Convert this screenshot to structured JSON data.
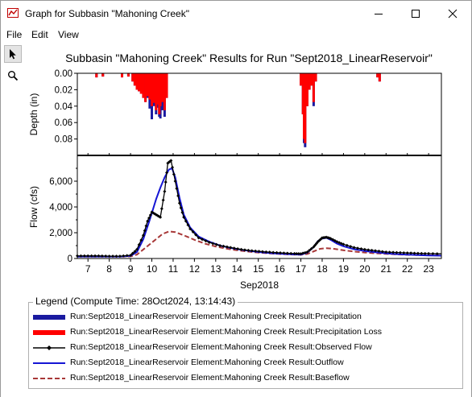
{
  "window": {
    "title": "Graph for Subbasin \"Mahoning Creek\"",
    "controls": {
      "minimize": "minimize-icon",
      "maximize": "maximize-icon",
      "close": "close-icon"
    }
  },
  "menu": [
    {
      "label": "File"
    },
    {
      "label": "Edit"
    },
    {
      "label": "View"
    }
  ],
  "tools": [
    {
      "icon": "pointer-arrow-icon",
      "selected": true
    },
    {
      "icon": "zoom-magnifier-icon",
      "selected": false
    }
  ],
  "chart_title": "Subbasin \"Mahoning Creek\" Results for Run \"Sept2018_LinearReservoir\"",
  "colors": {
    "precipitation": "#1a1aa0",
    "precipitation_loss": "#ff0000",
    "observed": "#000000",
    "outflow": "#1515d4",
    "baseflow": "#a83838"
  },
  "chart_data": [
    {
      "type": "bar",
      "name": "depth",
      "ylabel": "Depth (in)",
      "ylim": [
        0.1,
        0.0
      ],
      "yticks": [
        "0.00",
        "0.02",
        "0.04",
        "0.06",
        "0.08"
      ],
      "ytick_values": [
        0.0,
        0.02,
        0.04,
        0.06,
        0.08
      ],
      "inverted": true,
      "series": [
        {
          "name": "Run:Sept2018_LinearReservoir Element:Mahoning Creek Result:Precipitation"
        },
        {
          "name": "Run:Sept2018_LinearReservoir Element:Mahoning Creek Result:Precipitation Loss"
        }
      ],
      "x": [
        7.4,
        7.7,
        8.6,
        8.9,
        9.1,
        9.2,
        9.3,
        9.4,
        9.5,
        9.6,
        9.7,
        9.8,
        9.9,
        10.0,
        10.1,
        10.2,
        10.3,
        10.35,
        10.4,
        10.5,
        10.6,
        10.7,
        17.0,
        17.1,
        17.15,
        17.2,
        17.3,
        17.4,
        17.5,
        17.6,
        17.7,
        20.6,
        20.7
      ],
      "precipitation_loss": [
        0.005,
        0.004,
        0.005,
        0.004,
        0.01,
        0.015,
        0.02,
        0.022,
        0.025,
        0.03,
        0.035,
        0.028,
        0.032,
        0.04,
        0.036,
        0.045,
        0.038,
        0.05,
        0.04,
        0.035,
        0.045,
        0.03,
        0.015,
        0.05,
        0.08,
        0.085,
        0.04,
        0.02,
        0.015,
        0.035,
        0.01,
        0.005,
        0.01
      ],
      "precipitation": [
        0.005,
        0.004,
        0.005,
        0.004,
        0.01,
        0.015,
        0.02,
        0.022,
        0.025,
        0.03,
        0.035,
        0.03,
        0.043,
        0.056,
        0.04,
        0.05,
        0.042,
        0.053,
        0.055,
        0.045,
        0.053,
        0.03,
        0.015,
        0.05,
        0.085,
        0.09,
        0.04,
        0.02,
        0.015,
        0.04,
        0.01,
        0.005,
        0.01
      ]
    },
    {
      "type": "line",
      "name": "flow",
      "ylabel": "Flow (cfs)",
      "xlabel": "Sep2018",
      "xticks": [
        "7",
        "8",
        "9",
        "10",
        "11",
        "12",
        "13",
        "14",
        "15",
        "16",
        "17",
        "18",
        "19",
        "20",
        "21",
        "22",
        "23"
      ],
      "xlim": [
        6.5,
        23.6
      ],
      "ylim": [
        0,
        8000
      ],
      "yticks": [
        "0",
        "2,000",
        "4,000",
        "6,000"
      ],
      "ytick_values": [
        0,
        2000,
        4000,
        6000
      ],
      "series": [
        {
          "name": "Run:Sept2018_LinearReservoir Element:Mahoning Creek Result:Observed Flow",
          "x": [
            6.5,
            7.0,
            7.5,
            8.0,
            8.5,
            9.0,
            9.3,
            9.6,
            9.8,
            10.0,
            10.2,
            10.4,
            10.6,
            10.75,
            10.9,
            11.1,
            11.3,
            11.5,
            11.8,
            12.2,
            12.7,
            13.2,
            13.7,
            14.2,
            14.7,
            15.2,
            15.7,
            16.2,
            16.7,
            17.0,
            17.3,
            17.6,
            17.8,
            18.0,
            18.2,
            18.4,
            18.7,
            19.0,
            19.5,
            20.0,
            20.5,
            21.0,
            21.5,
            22.0,
            22.5,
            23.0,
            23.6
          ],
          "y": [
            200,
            200,
            200,
            180,
            180,
            250,
            700,
            1800,
            2900,
            3600,
            3400,
            3200,
            5200,
            7400,
            7600,
            6000,
            4300,
            3200,
            2300,
            1600,
            1250,
            1000,
            850,
            700,
            600,
            530,
            470,
            420,
            380,
            370,
            500,
            900,
            1300,
            1600,
            1650,
            1550,
            1300,
            1100,
            850,
            700,
            600,
            500,
            460,
            430,
            400,
            380,
            360
          ]
        },
        {
          "name": "Run:Sept2018_LinearReservoir Element:Mahoning Creek Result:Outflow",
          "x": [
            6.5,
            7.0,
            7.5,
            8.0,
            8.5,
            9.0,
            9.3,
            9.6,
            9.9,
            10.2,
            10.4,
            10.6,
            10.8,
            10.95,
            11.1,
            11.3,
            11.5,
            11.8,
            12.2,
            12.7,
            13.2,
            13.7,
            14.2,
            14.7,
            15.2,
            15.7,
            16.2,
            16.7,
            17.0,
            17.3,
            17.6,
            17.8,
            18.0,
            18.2,
            18.4,
            18.7,
            19.0,
            19.5,
            20.0,
            20.5,
            21.0,
            21.5,
            22.0,
            22.5,
            23.0,
            23.6
          ],
          "y": [
            150,
            150,
            150,
            150,
            150,
            200,
            500,
            1500,
            3000,
            4600,
            5500,
            6300,
            6900,
            7000,
            6300,
            4700,
            3400,
            2400,
            1700,
            1300,
            1000,
            820,
            680,
            560,
            470,
            400,
            350,
            310,
            300,
            450,
            900,
            1350,
            1550,
            1600,
            1450,
            1150,
            950,
            720,
            580,
            480,
            400,
            340,
            300,
            270,
            240,
            220
          ]
        },
        {
          "name": "Run:Sept2018_LinearReservoir Element:Mahoning Creek Result:Baseflow",
          "x": [
            6.5,
            7.0,
            7.5,
            8.0,
            8.5,
            9.0,
            9.3,
            9.6,
            9.9,
            10.2,
            10.5,
            10.8,
            11.1,
            11.5,
            12.0,
            12.5,
            13.0,
            13.5,
            14.0,
            14.5,
            15.0,
            15.5,
            16.0,
            16.5,
            17.0,
            17.3,
            17.6,
            17.9,
            18.2,
            18.5,
            19.0,
            19.5,
            20.0,
            20.5,
            21.0,
            21.5,
            22.0,
            22.5,
            23.0,
            23.6
          ],
          "y": [
            150,
            150,
            150,
            150,
            150,
            160,
            300,
            700,
            1100,
            1500,
            1900,
            2100,
            2050,
            1800,
            1450,
            1150,
            930,
            760,
            640,
            540,
            460,
            400,
            350,
            310,
            290,
            350,
            550,
            750,
            800,
            760,
            640,
            540,
            460,
            400,
            360,
            320,
            290,
            270,
            250,
            240
          ]
        }
      ]
    }
  ],
  "legend": {
    "title": "Legend (Compute Time: 28Oct2024, 13:14:43)",
    "items": [
      {
        "label": "Run:Sept2018_LinearReservoir Element:Mahoning Creek Result:Precipitation",
        "style": "thick",
        "color_key": "precipitation"
      },
      {
        "label": "Run:Sept2018_LinearReservoir Element:Mahoning Creek Result:Precipitation Loss",
        "style": "thick",
        "color_key": "precipitation_loss"
      },
      {
        "label": "Run:Sept2018_LinearReservoir Element:Mahoning Creek Result:Observed Flow",
        "style": "marker",
        "color_key": "observed"
      },
      {
        "label": "Run:Sept2018_LinearReservoir Element:Mahoning Creek Result:Outflow",
        "style": "solid",
        "color_key": "outflow"
      },
      {
        "label": "Run:Sept2018_LinearReservoir Element:Mahoning Creek Result:Baseflow",
        "style": "dashed",
        "color_key": "baseflow"
      }
    ]
  }
}
